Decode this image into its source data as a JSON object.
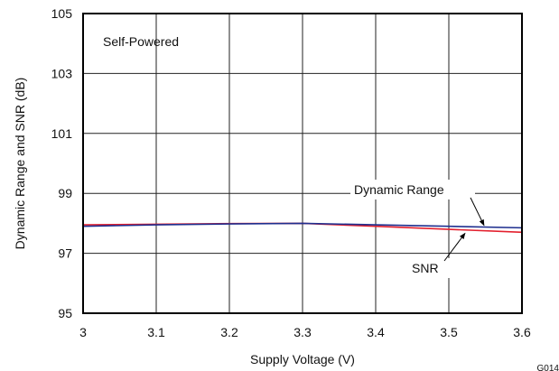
{
  "chart_data": {
    "type": "line",
    "title": "",
    "xlabel": "Supply Voltage (V)",
    "ylabel": "Dynamic Range and SNR (dB)",
    "xlim": [
      3,
      3.6
    ],
    "ylim": [
      95,
      105
    ],
    "xticks": [
      3,
      3.1,
      3.2,
      3.3,
      3.4,
      3.5,
      3.6
    ],
    "yticks": [
      95,
      97,
      99,
      101,
      103,
      105
    ],
    "xtick_labels": [
      "3",
      "3.1",
      "3.2",
      "3.3",
      "3.4",
      "3.5",
      "3.6"
    ],
    "ytick_labels": [
      "95",
      "97",
      "99",
      "101",
      "103",
      "105"
    ],
    "grid": true,
    "legend": "none",
    "annotation": "Self-Powered",
    "figure_code": "G014",
    "series": [
      {
        "name": "Dynamic Range",
        "color": "#1f2f8f",
        "x": [
          3.0,
          3.1,
          3.2,
          3.3,
          3.4,
          3.5,
          3.6
        ],
        "y": [
          97.9,
          97.95,
          97.98,
          98.0,
          97.95,
          97.9,
          97.85
        ]
      },
      {
        "name": "SNR",
        "color": "#e3202e",
        "x": [
          3.0,
          3.1,
          3.2,
          3.3,
          3.4,
          3.5,
          3.6
        ],
        "y": [
          97.95,
          97.97,
          97.99,
          98.0,
          97.9,
          97.8,
          97.7
        ]
      }
    ]
  }
}
